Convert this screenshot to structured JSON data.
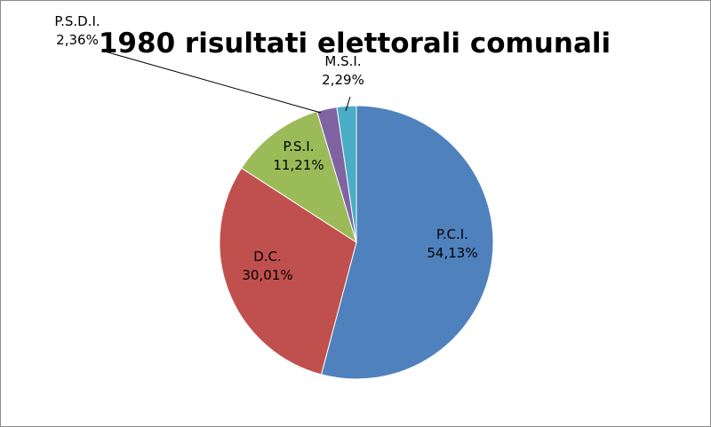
{
  "chart_data": {
    "type": "pie",
    "title": "1980 risultati elettorali comunali",
    "slices": [
      {
        "label": "P.C.I.",
        "value": 54.13,
        "display": "54,13%",
        "color": "#4f81bd"
      },
      {
        "label": "D.C.",
        "value": 30.01,
        "display": "30,01%",
        "color": "#c0504d"
      },
      {
        "label": "P.S.I.",
        "value": 11.21,
        "display": "11,21%",
        "color": "#9bbb59"
      },
      {
        "label": "P.S.D.I.",
        "value": 2.36,
        "display": "2,36%",
        "color": "#8064a2"
      },
      {
        "label": "M.S.I.",
        "value": 2.29,
        "display": "2,29%",
        "color": "#4bacc6"
      }
    ],
    "start_angle": "12 o'clock",
    "direction": "clockwise",
    "legend": "none",
    "data_labels": "category name and percentage"
  }
}
